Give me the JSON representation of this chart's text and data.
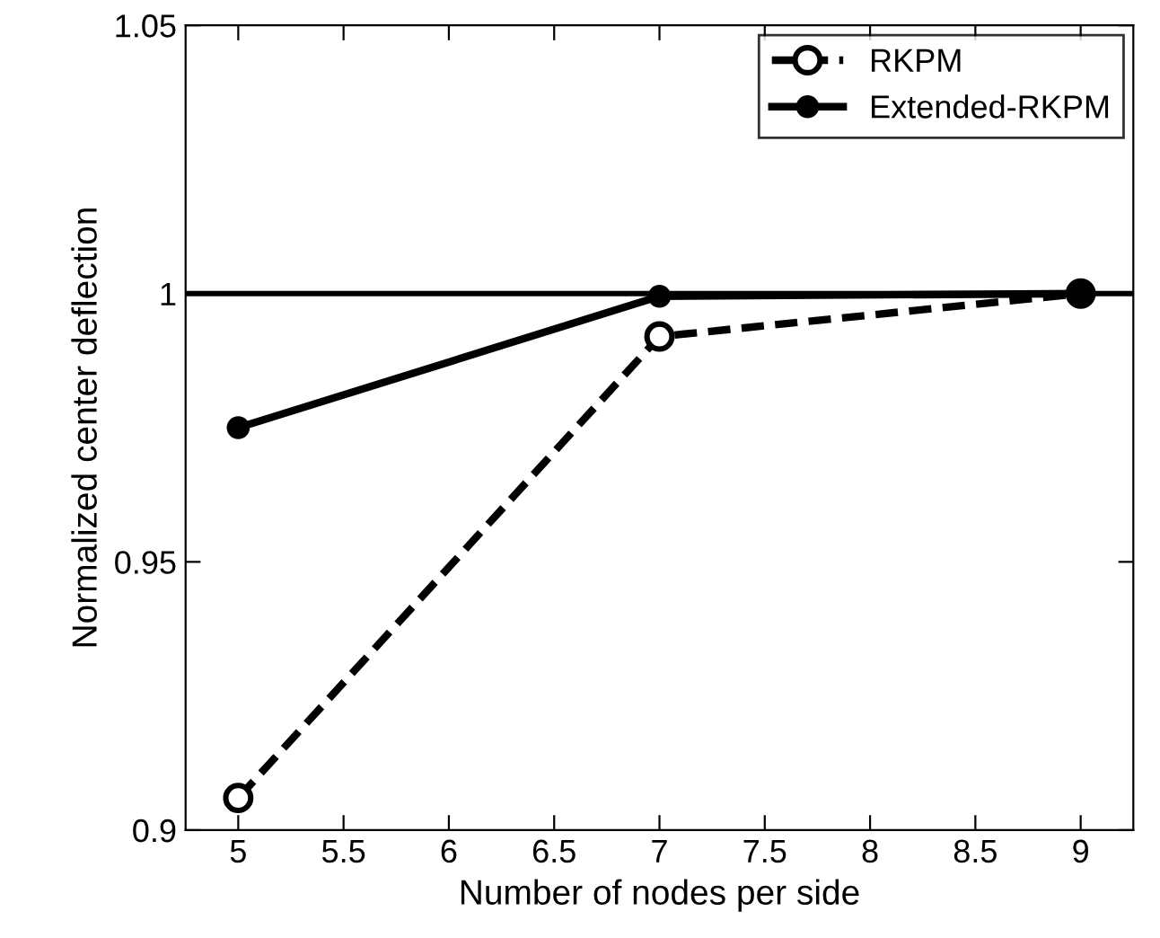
{
  "chart_data": {
    "type": "line",
    "xlabel": "Number of nodes per side",
    "ylabel": "Normalized center deflection",
    "x": [
      5,
      7,
      9
    ],
    "series": [
      {
        "name": "RKPM",
        "color": "#000000",
        "values": [
          0.906,
          0.992,
          1.0
        ],
        "line_style": "dashed",
        "marker": "circle"
      },
      {
        "name": "Extended-RKPM",
        "color": "#000000",
        "values": [
          0.975,
          0.9995,
          1.0
        ],
        "line_style": "solid",
        "marker": "circle"
      }
    ],
    "xlim": [
      4.75,
      9.25
    ],
    "xticks": [
      5,
      5.5,
      6,
      6.5,
      7,
      7.5,
      8,
      8.5,
      9
    ],
    "ylim": [
      0.9,
      1.05
    ],
    "yticks": [
      0.9,
      0.95,
      1,
      1.05
    ],
    "ref_lines": [
      {
        "axis": "y",
        "value": 1,
        "color": "#000000",
        "line_style": "solid"
      }
    ],
    "grid": false,
    "legend": "top right"
  }
}
